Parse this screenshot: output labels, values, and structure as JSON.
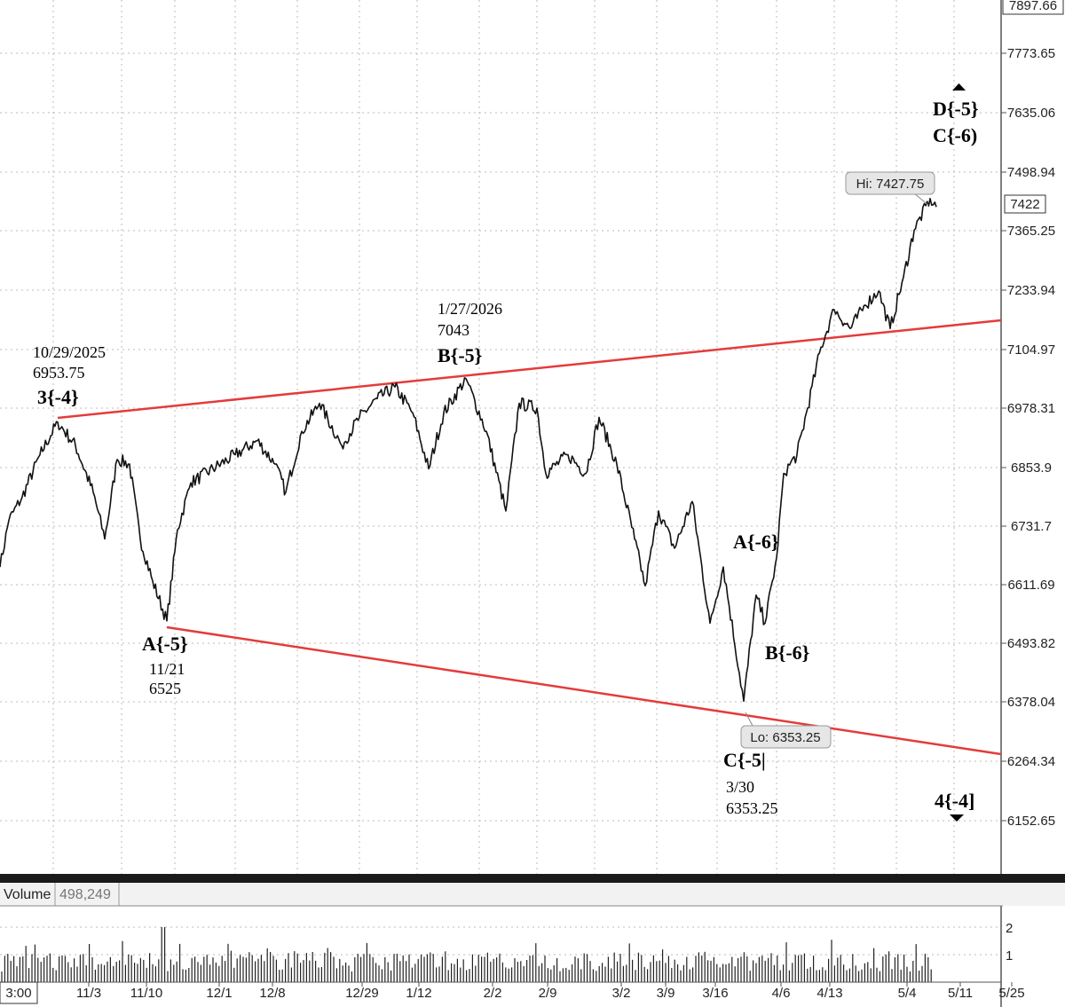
{
  "chart_data": {
    "type": "line",
    "price_axis": {
      "ticks": [
        "7897.66",
        "7773.65",
        "7635.06",
        "7498.94",
        "7365.25",
        "7233.94",
        "7104.97",
        "6978.31",
        "6853.9",
        "6731.7",
        "6611.69",
        "6493.82",
        "6378.04",
        "6264.34",
        "6152.65"
      ],
      "current_price": "7422"
    },
    "x_axis": {
      "ticks": [
        "3:00",
        "11/3",
        "11/10",
        "12/1",
        "12/8",
        "12/29",
        "1/12",
        "2/2",
        "2/9",
        "3/2",
        "3/9",
        "3/16",
        "4/6",
        "4/13",
        "5/4",
        "5/11",
        "5/25"
      ]
    },
    "hi_label": "Hi: 7427.75",
    "lo_label": "Lo: 6353.25",
    "annotations": [
      {
        "key": "a1",
        "text": "10/29/2025",
        "style": "small"
      },
      {
        "key": "a2",
        "text": "6953.75",
        "style": "small"
      },
      {
        "key": "a3",
        "text": "3{-4}",
        "style": "big"
      },
      {
        "key": "a4",
        "text": "1/27/2026",
        "style": "small"
      },
      {
        "key": "a5",
        "text": "7043",
        "style": "small"
      },
      {
        "key": "a6",
        "text": "B{-5}",
        "style": "big"
      },
      {
        "key": "a7",
        "text": "A{-5}",
        "style": "big"
      },
      {
        "key": "a8",
        "text": "11/21",
        "style": "small"
      },
      {
        "key": "a9",
        "text": "6525",
        "style": "small"
      },
      {
        "key": "a10",
        "text": "A{-6}",
        "style": "big"
      },
      {
        "key": "a11",
        "text": "B{-6}",
        "style": "big"
      },
      {
        "key": "a12",
        "text": "C{-5|",
        "style": "big"
      },
      {
        "key": "a13",
        "text": "3/30",
        "style": "small"
      },
      {
        "key": "a14",
        "text": "6353.25",
        "style": "small"
      },
      {
        "key": "a15",
        "text": "D{-5}",
        "style": "big"
      },
      {
        "key": "a16",
        "text": "C{-6)",
        "style": "big"
      },
      {
        "key": "a17",
        "text": "4{-4]",
        "style": "big"
      }
    ],
    "anchors": [
      {
        "x": 0,
        "y": 6640
      },
      {
        "x": 10,
        "y": 6740
      },
      {
        "x": 25,
        "y": 6790
      },
      {
        "x": 45,
        "y": 6880
      },
      {
        "x": 65,
        "y": 6950
      },
      {
        "x": 85,
        "y": 6900
      },
      {
        "x": 105,
        "y": 6800
      },
      {
        "x": 118,
        "y": 6700
      },
      {
        "x": 132,
        "y": 6870
      },
      {
        "x": 146,
        "y": 6860
      },
      {
        "x": 158,
        "y": 6700
      },
      {
        "x": 172,
        "y": 6610
      },
      {
        "x": 188,
        "y": 6525
      },
      {
        "x": 200,
        "y": 6720
      },
      {
        "x": 215,
        "y": 6820
      },
      {
        "x": 240,
        "y": 6850
      },
      {
        "x": 265,
        "y": 6880
      },
      {
        "x": 290,
        "y": 6910
      },
      {
        "x": 310,
        "y": 6860
      },
      {
        "x": 322,
        "y": 6800
      },
      {
        "x": 340,
        "y": 6930
      },
      {
        "x": 360,
        "y": 6990
      },
      {
        "x": 385,
        "y": 6900
      },
      {
        "x": 405,
        "y": 6960
      },
      {
        "x": 425,
        "y": 7000
      },
      {
        "x": 445,
        "y": 7025
      },
      {
        "x": 465,
        "y": 6970
      },
      {
        "x": 483,
        "y": 6850
      },
      {
        "x": 500,
        "y": 6970
      },
      {
        "x": 525,
        "y": 7043
      },
      {
        "x": 548,
        "y": 6930
      },
      {
        "x": 570,
        "y": 6760
      },
      {
        "x": 585,
        "y": 6990
      },
      {
        "x": 605,
        "y": 6980
      },
      {
        "x": 615,
        "y": 6840
      },
      {
        "x": 640,
        "y": 6880
      },
      {
        "x": 660,
        "y": 6840
      },
      {
        "x": 675,
        "y": 6960
      },
      {
        "x": 695,
        "y": 6860
      },
      {
        "x": 715,
        "y": 6700
      },
      {
        "x": 727,
        "y": 6600
      },
      {
        "x": 742,
        "y": 6760
      },
      {
        "x": 760,
        "y": 6680
      },
      {
        "x": 780,
        "y": 6780
      },
      {
        "x": 800,
        "y": 6520
      },
      {
        "x": 815,
        "y": 6640
      },
      {
        "x": 838,
        "y": 6353.25
      },
      {
        "x": 852,
        "y": 6580
      },
      {
        "x": 862,
        "y": 6520
      },
      {
        "x": 875,
        "y": 6660
      },
      {
        "x": 883,
        "y": 6840
      },
      {
        "x": 898,
        "y": 6880
      },
      {
        "x": 910,
        "y": 6980
      },
      {
        "x": 925,
        "y": 7110
      },
      {
        "x": 940,
        "y": 7190
      },
      {
        "x": 958,
        "y": 7150
      },
      {
        "x": 975,
        "y": 7200
      },
      {
        "x": 990,
        "y": 7230
      },
      {
        "x": 1003,
        "y": 7150
      },
      {
        "x": 1018,
        "y": 7260
      },
      {
        "x": 1030,
        "y": 7360
      },
      {
        "x": 1048,
        "y": 7427.75
      },
      {
        "x": 1055,
        "y": 7410
      }
    ],
    "volume": {
      "label": "Volume",
      "value": "498,249",
      "ticks": [
        "2",
        "1"
      ]
    }
  }
}
